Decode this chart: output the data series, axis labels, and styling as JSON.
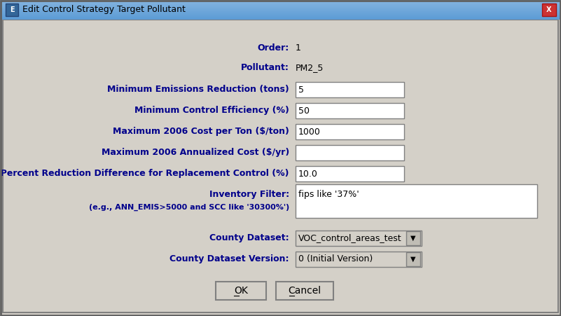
{
  "title": "Edit Control Strategy Target Pollutant",
  "bg_color": "#d4d0c8",
  "field_bg": "#ffffff",
  "label_color": "#00008b",
  "titlebar_color": "#5b9bd5",
  "order_value": "1",
  "pollutant_value": "PM2_5",
  "min_emissions_value": "5",
  "min_control_value": "50",
  "max_cost_value": "1000",
  "max_annual_value": "",
  "min_percent_value": "10.0",
  "inventory_value": "fips like '37%'",
  "county_dataset_value": "VOC_control_areas_test",
  "county_version_value": "0 (Initial Version)",
  "button_ok": "OK",
  "button_cancel": "Cancel",
  "label_order": "Order:",
  "label_pollutant": "Pollutant:",
  "label_min_emissions": "Minimum Emissions Reduction (tons)",
  "label_min_control": "Minimum Control Efficiency (%)",
  "label_max_cost": "Maximum 2006 Cost per Ton ($/ton)",
  "label_max_annual": "Maximum 2006 Annualized Cost ($/yr)",
  "label_min_percent": "Minimum Percent Reduction Difference for Replacement Control (%)",
  "label_inventory_1": "Inventory Filter:",
  "label_inventory_2": "(e.g., ANN_EMIS>5000 and SCC like '30300%')",
  "label_county_dataset": "County Dataset:",
  "label_county_version": "County Dataset Version:"
}
